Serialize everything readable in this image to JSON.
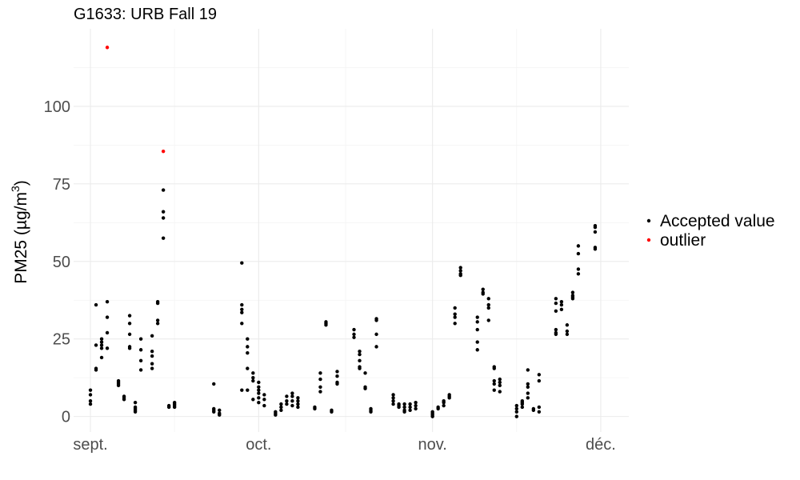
{
  "chart_data": {
    "type": "scatter",
    "title": "G1633: URB Fall 19",
    "xlabel": "",
    "ylabel": "PM25 (µg/m³)",
    "ylabel_parts": {
      "main": "PM25 (",
      "unit": "µg/m",
      "exp": "3",
      "close": ")"
    },
    "xlim": [
      "2019-08-29",
      "2019-12-06"
    ],
    "ylim": [
      -5,
      125
    ],
    "x_ticks": [
      {
        "date": "2019-09-01",
        "label": "sept."
      },
      {
        "date": "2019-10-01",
        "label": "oct."
      },
      {
        "date": "2019-11-01",
        "label": "nov."
      },
      {
        "date": "2019-12-01",
        "label": "déc."
      }
    ],
    "y_ticks": [
      0,
      25,
      50,
      75,
      100
    ],
    "grid": true,
    "legend_position": "right",
    "series": [
      {
        "name": "Accepted value",
        "color": "#000000",
        "points": [
          [
            "2019-09-01",
            4
          ],
          [
            "2019-09-01",
            5
          ],
          [
            "2019-09-01",
            7
          ],
          [
            "2019-09-01",
            8.5
          ],
          [
            "2019-09-02",
            36
          ],
          [
            "2019-09-02",
            23
          ],
          [
            "2019-09-02",
            15
          ],
          [
            "2019-09-02",
            15.5
          ],
          [
            "2019-09-03",
            19
          ],
          [
            "2019-09-03",
            22
          ],
          [
            "2019-09-03",
            23
          ],
          [
            "2019-09-03",
            24
          ],
          [
            "2019-09-03",
            25
          ],
          [
            "2019-09-04",
            37
          ],
          [
            "2019-09-04",
            32
          ],
          [
            "2019-09-04",
            27
          ],
          [
            "2019-09-04",
            22
          ],
          [
            "2019-09-06",
            10
          ],
          [
            "2019-09-06",
            10.5
          ],
          [
            "2019-09-06",
            11
          ],
          [
            "2019-09-06",
            11.5
          ],
          [
            "2019-09-07",
            5.5
          ],
          [
            "2019-09-07",
            6
          ],
          [
            "2019-09-07",
            6.5
          ],
          [
            "2019-09-08",
            32.5
          ],
          [
            "2019-09-08",
            30
          ],
          [
            "2019-09-08",
            26.5
          ],
          [
            "2019-09-08",
            22.5
          ],
          [
            "2019-09-08",
            22
          ],
          [
            "2019-09-09",
            1.5
          ],
          [
            "2019-09-09",
            2
          ],
          [
            "2019-09-09",
            2.5
          ],
          [
            "2019-09-09",
            3
          ],
          [
            "2019-09-09",
            4.5
          ],
          [
            "2019-09-10",
            25
          ],
          [
            "2019-09-10",
            21.5
          ],
          [
            "2019-09-10",
            18
          ],
          [
            "2019-09-10",
            15
          ],
          [
            "2019-09-12",
            26
          ],
          [
            "2019-09-12",
            21
          ],
          [
            "2019-09-12",
            19.5
          ],
          [
            "2019-09-12",
            17
          ],
          [
            "2019-09-12",
            15.5
          ],
          [
            "2019-09-13",
            37
          ],
          [
            "2019-09-13",
            36.5
          ],
          [
            "2019-09-13",
            31
          ],
          [
            "2019-09-13",
            30
          ],
          [
            "2019-09-14",
            73
          ],
          [
            "2019-09-14",
            66
          ],
          [
            "2019-09-14",
            64
          ],
          [
            "2019-09-14",
            57.5
          ],
          [
            "2019-09-15",
            3
          ],
          [
            "2019-09-15",
            3.5
          ],
          [
            "2019-09-16",
            3
          ],
          [
            "2019-09-16",
            3.5
          ],
          [
            "2019-09-16",
            4
          ],
          [
            "2019-09-16",
            4.5
          ],
          [
            "2019-09-23",
            10.5
          ],
          [
            "2019-09-23",
            2.5
          ],
          [
            "2019-09-23",
            2
          ],
          [
            "2019-09-23",
            1.5
          ],
          [
            "2019-09-24",
            2
          ],
          [
            "2019-09-24",
            1
          ],
          [
            "2019-09-24",
            0.5
          ],
          [
            "2019-09-28",
            49.5
          ],
          [
            "2019-09-28",
            36
          ],
          [
            "2019-09-28",
            34.5
          ],
          [
            "2019-09-28",
            33.5
          ],
          [
            "2019-09-28",
            30
          ],
          [
            "2019-09-28",
            8.5
          ],
          [
            "2019-09-29",
            25
          ],
          [
            "2019-09-29",
            22.5
          ],
          [
            "2019-09-29",
            20.5
          ],
          [
            "2019-09-29",
            15.5
          ],
          [
            "2019-09-29",
            8.5
          ],
          [
            "2019-09-30",
            14
          ],
          [
            "2019-09-30",
            12.5
          ],
          [
            "2019-09-30",
            11.5
          ],
          [
            "2019-09-30",
            5.5
          ],
          [
            "2019-10-01",
            11
          ],
          [
            "2019-10-01",
            9.5
          ],
          [
            "2019-10-01",
            8.5
          ],
          [
            "2019-10-01",
            7.5
          ],
          [
            "2019-10-01",
            6
          ],
          [
            "2019-10-01",
            4.5
          ],
          [
            "2019-10-02",
            7
          ],
          [
            "2019-10-02",
            5.5
          ],
          [
            "2019-10-02",
            3.5
          ],
          [
            "2019-10-04",
            1
          ],
          [
            "2019-10-04",
            0.5
          ],
          [
            "2019-10-04",
            1.5
          ],
          [
            "2019-10-05",
            4
          ],
          [
            "2019-10-05",
            3
          ],
          [
            "2019-10-05",
            2
          ],
          [
            "2019-10-06",
            6.5
          ],
          [
            "2019-10-06",
            5
          ],
          [
            "2019-10-06",
            4
          ],
          [
            "2019-10-07",
            7.5
          ],
          [
            "2019-10-07",
            6.5
          ],
          [
            "2019-10-07",
            5
          ],
          [
            "2019-10-07",
            3.5
          ],
          [
            "2019-10-08",
            6
          ],
          [
            "2019-10-08",
            5
          ],
          [
            "2019-10-08",
            4
          ],
          [
            "2019-10-08",
            3
          ],
          [
            "2019-10-11",
            3
          ],
          [
            "2019-10-11",
            2.5
          ],
          [
            "2019-10-12",
            14
          ],
          [
            "2019-10-12",
            12
          ],
          [
            "2019-10-12",
            9.5
          ],
          [
            "2019-10-12",
            8
          ],
          [
            "2019-10-13",
            30.5
          ],
          [
            "2019-10-13",
            30
          ],
          [
            "2019-10-13",
            29.5
          ],
          [
            "2019-10-14",
            2
          ],
          [
            "2019-10-14",
            1.5
          ],
          [
            "2019-10-15",
            14.5
          ],
          [
            "2019-10-15",
            13
          ],
          [
            "2019-10-15",
            11
          ],
          [
            "2019-10-15",
            10.5
          ],
          [
            "2019-10-18",
            28
          ],
          [
            "2019-10-18",
            26.5
          ],
          [
            "2019-10-18",
            25.5
          ],
          [
            "2019-10-19",
            21
          ],
          [
            "2019-10-19",
            20
          ],
          [
            "2019-10-19",
            18
          ],
          [
            "2019-10-19",
            16
          ],
          [
            "2019-10-19",
            15.5
          ],
          [
            "2019-10-20",
            14
          ],
          [
            "2019-10-20",
            9.5
          ],
          [
            "2019-10-20",
            9
          ],
          [
            "2019-10-21",
            2.5
          ],
          [
            "2019-10-21",
            2
          ],
          [
            "2019-10-21",
            1.5
          ],
          [
            "2019-10-22",
            31.5
          ],
          [
            "2019-10-22",
            31
          ],
          [
            "2019-10-22",
            26.5
          ],
          [
            "2019-10-22",
            22.5
          ],
          [
            "2019-10-25",
            7
          ],
          [
            "2019-10-25",
            6
          ],
          [
            "2019-10-25",
            5
          ],
          [
            "2019-10-25",
            4
          ],
          [
            "2019-10-26",
            4
          ],
          [
            "2019-10-26",
            3.5
          ],
          [
            "2019-10-26",
            3
          ],
          [
            "2019-10-27",
            4
          ],
          [
            "2019-10-27",
            3
          ],
          [
            "2019-10-27",
            2
          ],
          [
            "2019-10-27",
            1.5
          ],
          [
            "2019-10-28",
            4
          ],
          [
            "2019-10-28",
            3
          ],
          [
            "2019-10-28",
            2
          ],
          [
            "2019-10-29",
            4.5
          ],
          [
            "2019-10-29",
            3.5
          ],
          [
            "2019-10-29",
            2.5
          ],
          [
            "2019-11-01",
            1.5
          ],
          [
            "2019-11-01",
            1
          ],
          [
            "2019-11-01",
            0.5
          ],
          [
            "2019-11-01",
            0
          ],
          [
            "2019-11-02",
            3
          ],
          [
            "2019-11-02",
            2.5
          ],
          [
            "2019-11-03",
            5
          ],
          [
            "2019-11-03",
            4.5
          ],
          [
            "2019-11-03",
            3.5
          ],
          [
            "2019-11-04",
            7
          ],
          [
            "2019-11-04",
            6.5
          ],
          [
            "2019-11-04",
            6
          ],
          [
            "2019-11-05",
            35
          ],
          [
            "2019-11-05",
            33
          ],
          [
            "2019-11-05",
            32
          ],
          [
            "2019-11-05",
            30
          ],
          [
            "2019-11-06",
            48
          ],
          [
            "2019-11-06",
            47
          ],
          [
            "2019-11-06",
            46
          ],
          [
            "2019-11-06",
            45.5
          ],
          [
            "2019-11-09",
            32
          ],
          [
            "2019-11-09",
            30.5
          ],
          [
            "2019-11-09",
            28
          ],
          [
            "2019-11-09",
            24
          ],
          [
            "2019-11-09",
            21.5
          ],
          [
            "2019-11-10",
            41
          ],
          [
            "2019-11-10",
            40
          ],
          [
            "2019-11-10",
            39.5
          ],
          [
            "2019-11-11",
            38
          ],
          [
            "2019-11-11",
            36
          ],
          [
            "2019-11-11",
            35
          ],
          [
            "2019-11-11",
            31
          ],
          [
            "2019-11-12",
            16
          ],
          [
            "2019-11-12",
            15.5
          ],
          [
            "2019-11-12",
            11.5
          ],
          [
            "2019-11-12",
            10.5
          ],
          [
            "2019-11-12",
            8.5
          ],
          [
            "2019-11-13",
            12
          ],
          [
            "2019-11-13",
            11
          ],
          [
            "2019-11-13",
            10
          ],
          [
            "2019-11-13",
            8
          ],
          [
            "2019-11-16",
            3.5
          ],
          [
            "2019-11-16",
            2.5
          ],
          [
            "2019-11-16",
            1.5
          ],
          [
            "2019-11-16",
            0
          ],
          [
            "2019-11-17",
            5
          ],
          [
            "2019-11-17",
            4.5
          ],
          [
            "2019-11-17",
            4
          ],
          [
            "2019-11-17",
            3
          ],
          [
            "2019-11-18",
            15
          ],
          [
            "2019-11-18",
            10.5
          ],
          [
            "2019-11-18",
            9.5
          ],
          [
            "2019-11-18",
            7.5
          ],
          [
            "2019-11-18",
            6
          ],
          [
            "2019-11-19",
            2.5
          ],
          [
            "2019-11-19",
            2
          ],
          [
            "2019-11-20",
            13.5
          ],
          [
            "2019-11-20",
            11.5
          ],
          [
            "2019-11-20",
            3
          ],
          [
            "2019-11-20",
            1.5
          ],
          [
            "2019-11-23",
            38
          ],
          [
            "2019-11-23",
            36.5
          ],
          [
            "2019-11-23",
            34
          ],
          [
            "2019-11-23",
            28
          ],
          [
            "2019-11-23",
            27
          ],
          [
            "2019-11-23",
            26.5
          ],
          [
            "2019-11-24",
            37
          ],
          [
            "2019-11-24",
            36
          ],
          [
            "2019-11-24",
            34.5
          ],
          [
            "2019-11-25",
            29.5
          ],
          [
            "2019-11-25",
            27.5
          ],
          [
            "2019-11-25",
            26.5
          ],
          [
            "2019-11-26",
            40
          ],
          [
            "2019-11-26",
            39
          ],
          [
            "2019-11-26",
            38.5
          ],
          [
            "2019-11-26",
            38
          ],
          [
            "2019-11-27",
            55
          ],
          [
            "2019-11-27",
            52.5
          ],
          [
            "2019-11-27",
            47.5
          ],
          [
            "2019-11-27",
            46
          ],
          [
            "2019-11-30",
            61.5
          ],
          [
            "2019-11-30",
            61
          ],
          [
            "2019-11-30",
            59.5
          ],
          [
            "2019-11-30",
            54.5
          ],
          [
            "2019-11-30",
            54
          ]
        ]
      },
      {
        "name": "outlier",
        "color": "#ff0000",
        "points": [
          [
            "2019-09-04",
            119
          ],
          [
            "2019-09-14",
            85.5
          ]
        ]
      }
    ]
  }
}
